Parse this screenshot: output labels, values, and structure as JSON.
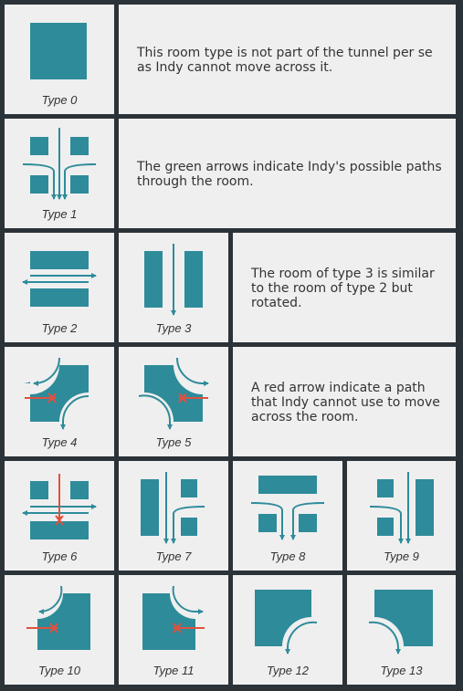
{
  "colors": {
    "background": "#2b3339",
    "tile": "#efefef",
    "room": "#2e8b9a",
    "path_arrow": "#2e8b9a",
    "blocked_arrow": "#e0513f"
  },
  "tiles": {
    "t0": {
      "label": "Type 0"
    },
    "t1": {
      "label": "Type 1"
    },
    "t2": {
      "label": "Type 2"
    },
    "t3": {
      "label": "Type 3"
    },
    "t4": {
      "label": "Type 4"
    },
    "t5": {
      "label": "Type 5"
    },
    "t6": {
      "label": "Type 6"
    },
    "t7": {
      "label": "Type 7"
    },
    "t8": {
      "label": "Type 8"
    },
    "t9": {
      "label": "Type 9"
    },
    "t10": {
      "label": "Type 10"
    },
    "t11": {
      "label": "Type 11"
    },
    "t12": {
      "label": "Type 12"
    },
    "t13": {
      "label": "Type 13"
    }
  },
  "descriptions": {
    "type0": "This room type is not part of the tunnel per se as Indy cannot move across it.",
    "type1": "The green arrows indicate Indy's possible paths through the room.",
    "type3": "The room of type 3 is similar to the room of type 2 but rotated.",
    "red": "A red arrow indicate a path that Indy cannot use to move across the room."
  }
}
